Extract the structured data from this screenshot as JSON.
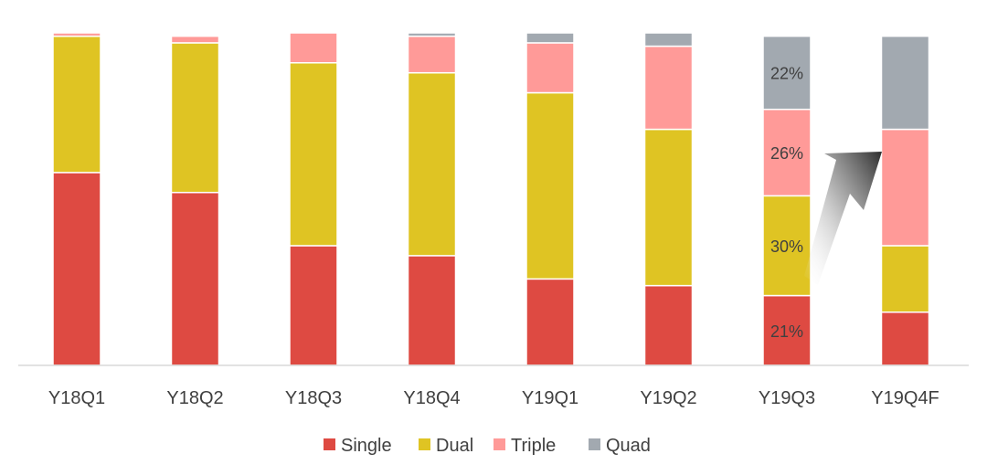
{
  "chart_data": {
    "type": "bar",
    "stacked": true,
    "percent_stacked": true,
    "categories": [
      "Y18Q1",
      "Y18Q2",
      "Y18Q3",
      "Y18Q4",
      "Y19Q1",
      "Y19Q2",
      "Y19Q3",
      "Y19Q4F"
    ],
    "series": [
      {
        "name": "Single",
        "color": "#de4a42",
        "values": [
          58,
          52,
          36,
          33,
          26,
          24,
          21,
          16
        ]
      },
      {
        "name": "Dual",
        "color": "#dfc423",
        "values": [
          41,
          45,
          55,
          55,
          56,
          47,
          30,
          20
        ]
      },
      {
        "name": "Triple",
        "color": "#ff9a98",
        "values": [
          1,
          2,
          9,
          11,
          15,
          25,
          26,
          35
        ]
      },
      {
        "name": "Quad",
        "color": "#a2a9b0",
        "values": [
          0,
          0,
          0,
          1,
          3,
          4,
          22,
          28
        ]
      }
    ],
    "data_labels": [
      {
        "category": "Y19Q3",
        "series": "Single",
        "text": "21%"
      },
      {
        "category": "Y19Q3",
        "series": "Dual",
        "text": "30%"
      },
      {
        "category": "Y19Q3",
        "series": "Triple",
        "text": "26%"
      },
      {
        "category": "Y19Q3",
        "series": "Quad",
        "text": "22%"
      }
    ],
    "ylim": [
      0,
      100
    ],
    "grid": false,
    "legend": "bottom",
    "annotation": "arrow from Y19Q3 to Y19Q4F"
  }
}
